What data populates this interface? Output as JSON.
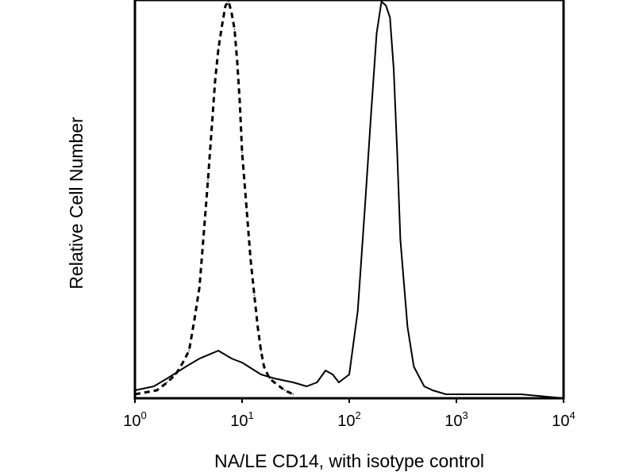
{
  "chart_data": {
    "type": "line",
    "title": "",
    "xlabel": "NA/LE CD14, with isotype control",
    "ylabel": "Relative Cell Number",
    "x_scale": "log",
    "xlim": [
      1,
      10000
    ],
    "ylim": [
      0,
      100
    ],
    "x_ticks": [
      {
        "value": 1,
        "base": "10",
        "exp": "0"
      },
      {
        "value": 10,
        "base": "10",
        "exp": "1"
      },
      {
        "value": 100,
        "base": "10",
        "exp": "2"
      },
      {
        "value": 1000,
        "base": "10",
        "exp": "3"
      },
      {
        "value": 10000,
        "base": "10",
        "exp": "4"
      }
    ],
    "grid": false,
    "legend": "none",
    "series": [
      {
        "style": "dashed",
        "color": "#000000",
        "x": [
          1.0,
          1.6,
          2.0,
          2.4,
          2.8,
          3.2,
          3.6,
          4.0,
          4.4,
          4.8,
          5.2,
          5.6,
          6.0,
          6.5,
          7.0,
          7.5,
          8.0,
          8.5,
          9.0,
          9.5,
          10.0,
          11.0,
          12.0,
          13.0,
          14.0,
          15.0,
          16.0,
          18.0,
          20.0,
          25.0,
          30.0
        ],
        "y": [
          1,
          2,
          4,
          6,
          9,
          12,
          20,
          28,
          42,
          55,
          68,
          80,
          88,
          94,
          99,
          100,
          97,
          93,
          85,
          75,
          62,
          48,
          35,
          26,
          18,
          12,
          8,
          5,
          4,
          2,
          1
        ]
      },
      {
        "style": "solid",
        "color": "#000000",
        "x": [
          1.0,
          1.5,
          2.0,
          3.0,
          4.0,
          6.0,
          8.0,
          10.0,
          15.0,
          20.0,
          30.0,
          40.0,
          50.0,
          60.0,
          70.0,
          80.0,
          100.0,
          120.0,
          140.0,
          160.0,
          180.0,
          200.0,
          220.0,
          240.0,
          260.0,
          280.0,
          300.0,
          350.0,
          400.0,
          500.0,
          600.0,
          800.0,
          1000.0,
          2000.0,
          4000.0,
          10000.0
        ],
        "y": [
          2,
          3,
          5,
          8,
          10,
          12,
          10,
          9,
          6,
          5,
          4,
          3,
          4,
          7,
          6,
          4,
          6,
          22,
          48,
          72,
          92,
          100,
          99,
          96,
          83,
          62,
          40,
          18,
          8,
          3,
          2,
          1,
          1,
          1,
          1,
          0
        ]
      }
    ]
  }
}
